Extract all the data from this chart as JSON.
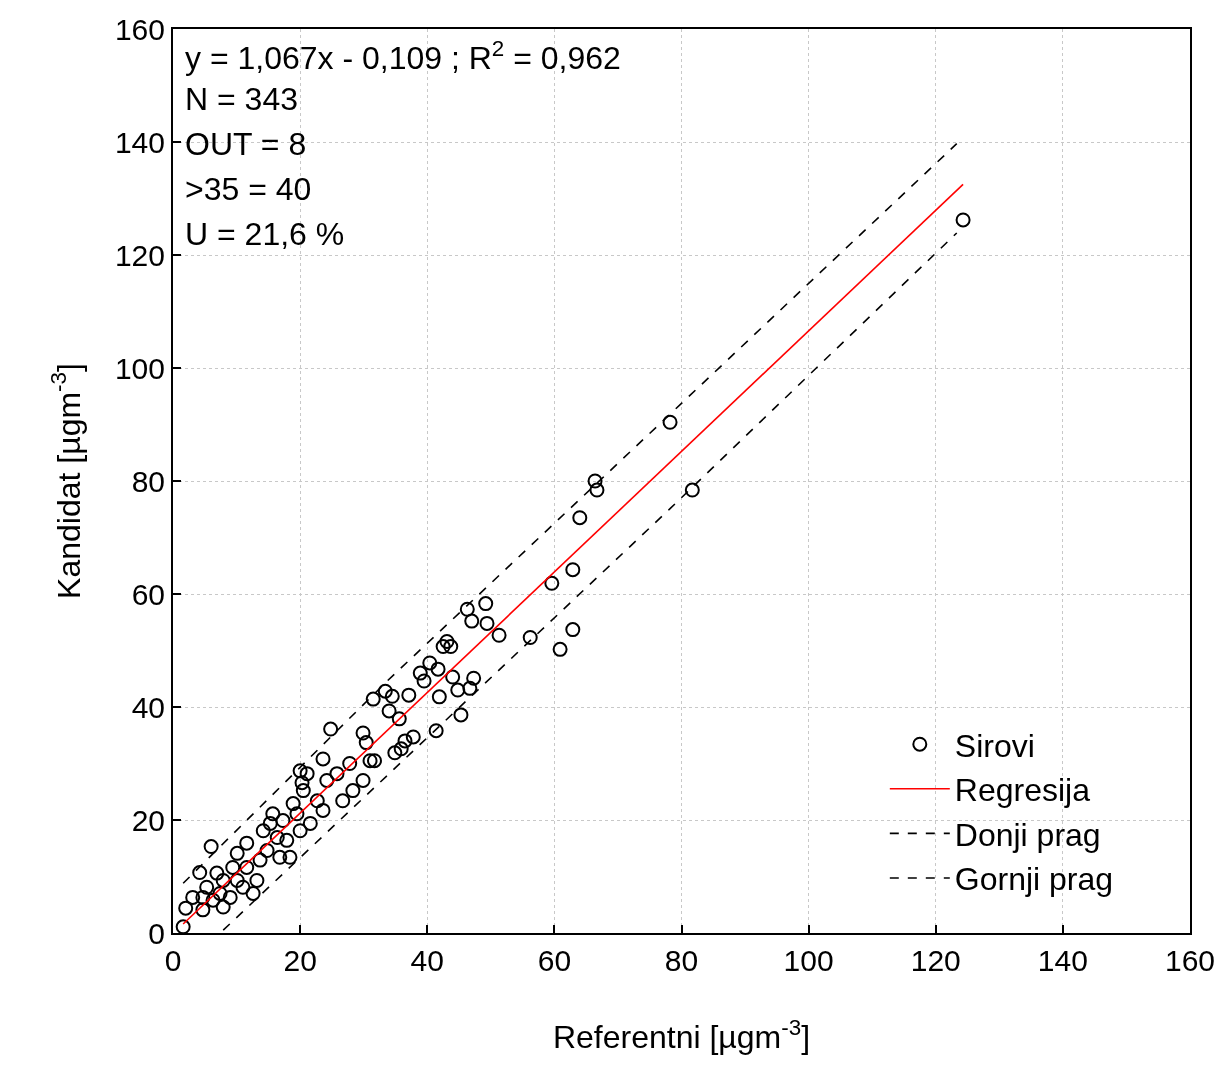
{
  "chart_data": {
    "type": "scatter",
    "xlabel": "Referentni [µgm$^{-3}$]",
    "ylabel": "Kandidat [µgm$^{-3}$]",
    "annotations": [
      "y = 1,067x - 0,109 ; R$^{2}$ = 0,962",
      "N = 343",
      "OUT = 8",
      ">35 = 40",
      "U = 21,6 %"
    ],
    "xlim": [
      0,
      160
    ],
    "ylim": [
      0,
      160
    ],
    "xticks": [
      0,
      20,
      40,
      60,
      80,
      100,
      120,
      140,
      160
    ],
    "yticks": [
      0,
      20,
      40,
      60,
      80,
      100,
      120,
      140,
      160
    ],
    "grid": true,
    "legend": "bottom right",
    "series": [
      {
        "name": "Sirovi",
        "marker": "circle",
        "color": "#000000",
        "x": [
          124.3,
          78.2,
          81.7,
          66.4,
          66.7,
          64.0,
          62.9,
          59.6,
          62.9,
          60.9,
          56.2,
          51.3,
          49.2,
          49.4,
          46.3,
          47.0,
          47.3,
          46.7,
          45.3,
          44.8,
          44.0,
          43.7,
          43.1,
          42.5,
          41.7,
          41.9,
          41.4,
          40.4,
          39.5,
          38.9,
          37.1,
          37.8,
          36.5,
          35.6,
          35.9,
          34.9,
          34.5,
          33.4,
          34.0,
          31.5,
          31.7,
          29.9,
          30.4,
          24.8,
          23.6,
          20.0,
          20.3,
          6.0,
          1.6,
          2.0,
          4.2,
          5.3,
          4.7,
          6.3,
          7.4,
          7.9,
          9.4,
          10.1,
          11.6,
          11.0,
          13.2,
          13.7,
          15.3,
          14.2,
          16.4,
          16.8,
          17.9,
          20.0,
          19.5,
          21.6,
          20.5,
          22.7,
          23.6,
          24.2,
          25.8,
          26.7,
          27.8,
          31.0,
          29.9,
          28.3,
          7.9,
          9.0,
          4.7,
          3.1,
          12.6,
          10.1,
          14.8,
          15.7,
          17.3,
          18.9,
          18.4,
          21.1,
          11.6,
          6.9
        ],
        "values": [
          126.2,
          90.4,
          78.4,
          80.0,
          78.4,
          73.5,
          64.3,
          61.9,
          53.7,
          50.2,
          52.3,
          52.7,
          58.3,
          54.8,
          57.3,
          55.2,
          45.1,
          43.3,
          38.6,
          43.0,
          45.3,
          50.7,
          51.6,
          50.7,
          46.7,
          41.8,
          35.8,
          47.8,
          44.6,
          46.0,
          42.1,
          34.7,
          34.0,
          37.9,
          32.6,
          31.9,
          41.9,
          42.8,
          39.3,
          41.4,
          30.5,
          35.4,
          33.7,
          36.1,
          30.8,
          28.7,
          26.6,
          15.3,
          1.1,
          4.4,
          10.7,
          8.1,
          4.1,
          5.8,
          7.0,
          9.3,
          11.6,
          14.1,
          15.9,
          8.1,
          9.3,
          12.9,
          19.4,
          18.1,
          16.9,
          13.4,
          16.4,
          18.1,
          21.1,
          19.4,
          25.2,
          23.4,
          21.7,
          27.0,
          28.2,
          23.4,
          30.0,
          30.5,
          27.0,
          25.2,
          4.6,
          6.3,
          6.3,
          6.3,
          7.0,
          9.3,
          14.6,
          21.1,
          19.9,
          22.9,
          13.4,
          28.2,
          11.6,
          10.6
        ]
      },
      {
        "name": "Regresija",
        "type": "line",
        "line_style": "solid",
        "color": "#ff0000",
        "x": [
          1.6,
          124.3
        ],
        "values": [
          1.6,
          132.5
        ]
      },
      {
        "name": "Donji prag",
        "type": "line",
        "line_style": "dashed",
        "color": "#000000",
        "x": [
          7.9,
          78.2,
          123.3
        ],
        "values": [
          0.5,
          75.1,
          123.9
        ]
      },
      {
        "name": "Gornji prag",
        "type": "line",
        "line_style": "dashed",
        "color": "#000000",
        "x": [
          1.6,
          33.7,
          123.3
        ],
        "values": [
          8.8,
          44.6,
          139.7
        ]
      }
    ]
  }
}
